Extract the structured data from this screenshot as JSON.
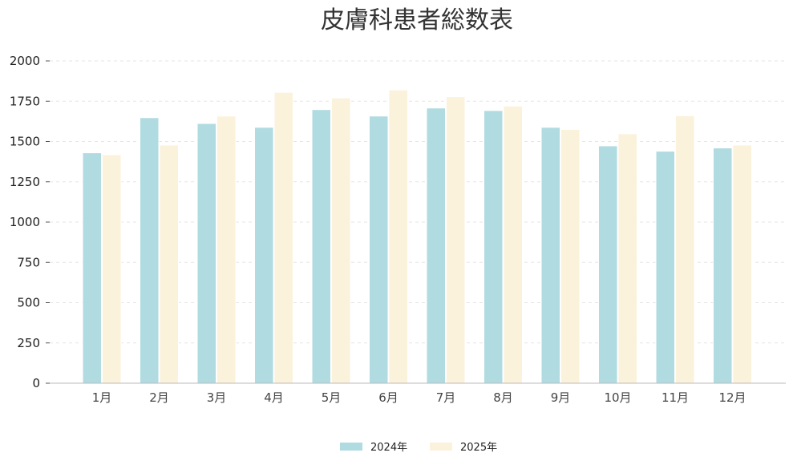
{
  "chart_data": {
    "type": "bar",
    "title": "皮膚科患者総数表",
    "xlabel": "",
    "ylabel": "",
    "categories": [
      "1月",
      "2月",
      "3月",
      "4月",
      "5月",
      "6月",
      "7月",
      "8月",
      "9月",
      "10月",
      "11月",
      "12月"
    ],
    "series": [
      {
        "name": "2024年",
        "color": "#b0dbe0",
        "values": [
          1430,
          1648,
          1612,
          1588,
          1698,
          1658,
          1708,
          1692,
          1588,
          1473,
          1440,
          1460
        ]
      },
      {
        "name": "2025年",
        "color": "#fbf2dc",
        "values": [
          1418,
          1478,
          1658,
          1805,
          1770,
          1820,
          1778,
          1720,
          1575,
          1548,
          1660,
          1478
        ]
      }
    ],
    "ylim": [
      0,
      2000
    ],
    "yticks": [
      0,
      250,
      500,
      750,
      1000,
      1250,
      1500,
      1750,
      2000
    ],
    "grid": true,
    "legend_position": "bottom-center"
  }
}
